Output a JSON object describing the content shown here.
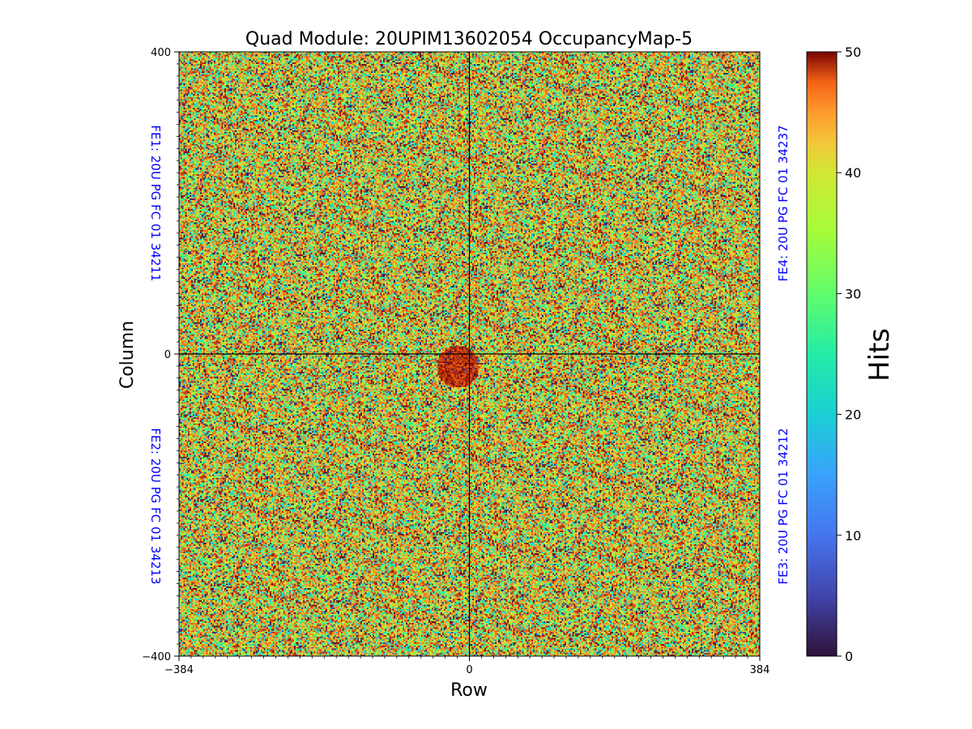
{
  "chart_data": {
    "type": "heatmap",
    "title": "Quad Module: 20UPIM13602054 OccupancyMap-5",
    "xlabel": "Row",
    "ylabel": "Column",
    "xlim": [
      -384,
      384
    ],
    "ylim": [
      -400,
      400
    ],
    "x_ticks": [
      {
        "value": -384,
        "label": "−384"
      },
      {
        "value": 0,
        "label": "0"
      },
      {
        "value": 384,
        "label": "384"
      }
    ],
    "y_ticks": [
      {
        "value": 400,
        "label": "400"
      },
      {
        "value": 0,
        "label": "0"
      },
      {
        "value": -400,
        "label": "−400"
      }
    ],
    "colorbar": {
      "label": "Hits",
      "colormap": "turbo",
      "range": [
        0,
        50
      ],
      "ticks": [
        {
          "value": 0,
          "label": "0"
        },
        {
          "value": 10,
          "label": "10"
        },
        {
          "value": 20,
          "label": "20"
        },
        {
          "value": 30,
          "label": "30"
        },
        {
          "value": 40,
          "label": "40"
        },
        {
          "value": 50,
          "label": "50"
        }
      ]
    },
    "front_ends": [
      {
        "id": "FE1",
        "label": "FE1: 20U PG FC 01 34211",
        "quadrant": "top-left",
        "x_range": [
          -384,
          0
        ],
        "y_range": [
          0,
          400
        ]
      },
      {
        "id": "FE2",
        "label": "FE2: 20U PG FC 01 34213",
        "quadrant": "bottom-left",
        "x_range": [
          -384,
          0
        ],
        "y_range": [
          -400,
          0
        ]
      },
      {
        "id": "FE3",
        "label": "FE3: 20U PG FC 01 34212",
        "quadrant": "bottom-right",
        "x_range": [
          0,
          384
        ],
        "y_range": [
          -400,
          0
        ]
      },
      {
        "id": "FE4",
        "label": "FE4: 20U PG FC 01 34237",
        "quadrant": "top-right",
        "x_range": [
          0,
          384
        ],
        "y_range": [
          0,
          400
        ]
      }
    ],
    "divider_lines": {
      "x": 0,
      "y": 0
    },
    "hits_distribution": "approximately uniform random occupancy between 0 and 50 hits per pixel across all four front-ends, with a slightly denser cluster near the module center"
  },
  "colors": {
    "annotation": "#0000ff",
    "divider": "#000000",
    "axis": "#000000"
  }
}
